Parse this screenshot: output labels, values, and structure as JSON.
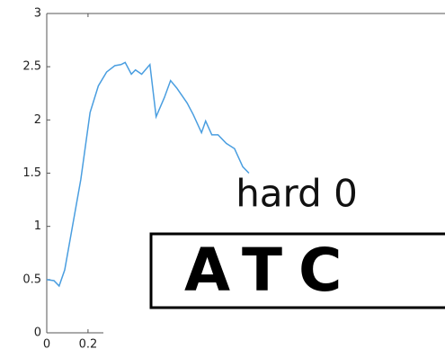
{
  "chart_data": {
    "type": "line",
    "x": [
      0,
      0.035,
      0.06,
      0.087,
      0.12,
      0.165,
      0.21,
      0.25,
      0.29,
      0.33,
      0.36,
      0.38,
      0.41,
      0.43,
      0.46,
      0.5,
      0.53,
      0.57,
      0.6,
      0.63,
      0.68,
      0.71,
      0.75,
      0.77,
      0.8,
      0.83,
      0.87,
      0.91,
      0.95,
      0.98
    ],
    "series": [
      {
        "color": "#4a9ee0",
        "values": [
          0.5,
          0.49,
          0.44,
          0.59,
          0.95,
          1.44,
          2.07,
          2.32,
          2.45,
          2.51,
          2.52,
          2.54,
          2.43,
          2.47,
          2.43,
          2.52,
          2.03,
          2.21,
          2.37,
          2.3,
          2.16,
          2.05,
          1.88,
          1.99,
          1.86,
          1.86,
          1.78,
          1.73,
          1.56,
          1.5
        ]
      }
    ],
    "xlim": [
      0,
      1.93
    ],
    "xticks": [
      0,
      0.2
    ],
    "ylim": [
      0,
      3
    ],
    "yticks": [
      0,
      0.5,
      1,
      1.5,
      2,
      2.5,
      3
    ],
    "annotations": [
      "hard 0",
      "ATC"
    ]
  }
}
